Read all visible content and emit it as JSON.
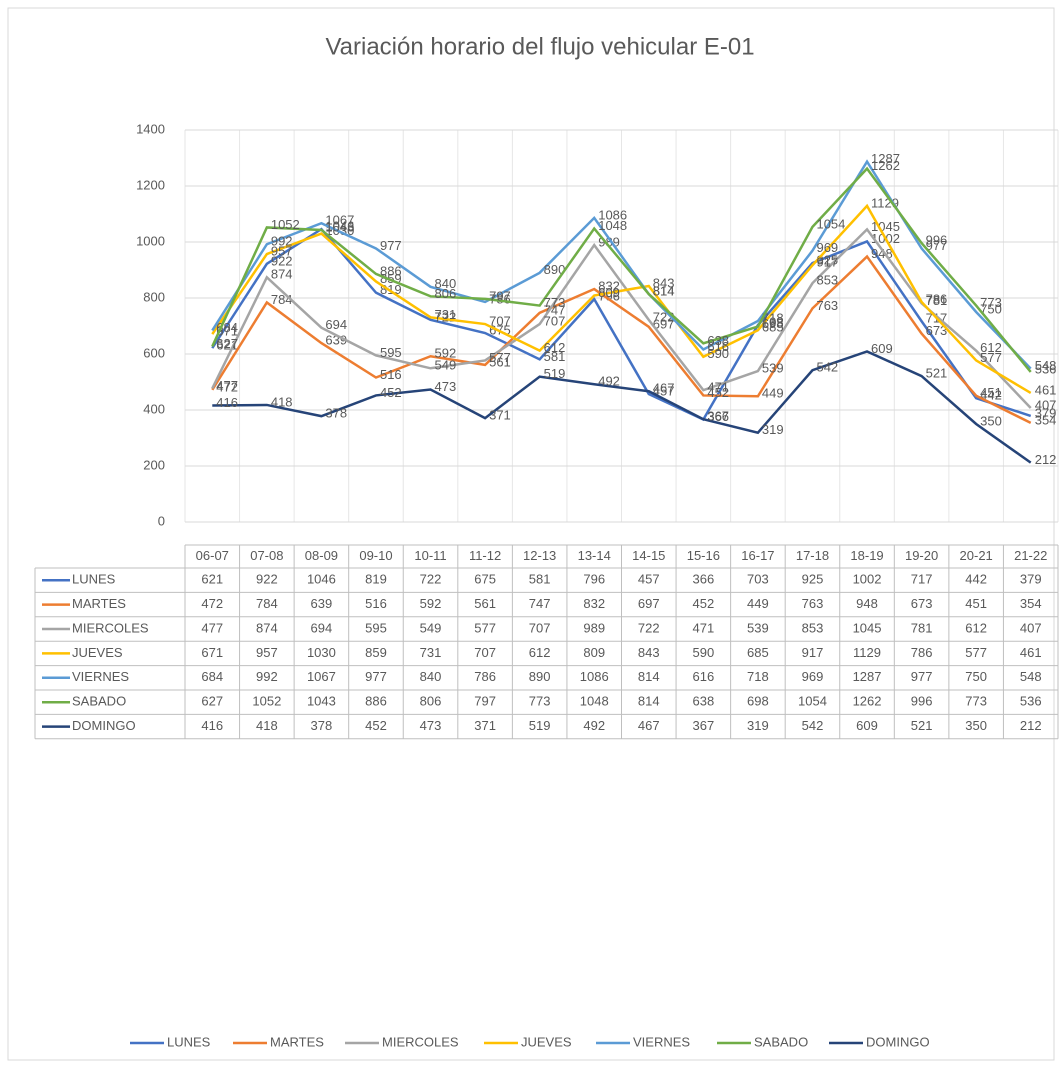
{
  "chart_data": {
    "type": "line",
    "title": "Variación horario del flujo vehicular E-01",
    "categories": [
      "06-07",
      "07-08",
      "08-09",
      "09-10",
      "10-11",
      "11-12",
      "12-13",
      "13-14",
      "14-15",
      "15-16",
      "16-17",
      "17-18",
      "18-19",
      "19-20",
      "20-21",
      "21-22"
    ],
    "series": [
      {
        "name": "LUNES",
        "color": "#4472c4",
        "values": [
          621,
          922,
          1046,
          819,
          722,
          675,
          581,
          796,
          457,
          366,
          703,
          925,
          1002,
          717,
          442,
          379
        ]
      },
      {
        "name": "MARTES",
        "color": "#ed7d31",
        "values": [
          472,
          784,
          639,
          516,
          592,
          561,
          747,
          832,
          697,
          452,
          449,
          763,
          948,
          673,
          451,
          354
        ]
      },
      {
        "name": "MIERCOLES",
        "color": "#a5a5a5",
        "values": [
          477,
          874,
          694,
          595,
          549,
          577,
          707,
          989,
          722,
          471,
          539,
          853,
          1045,
          781,
          612,
          407
        ]
      },
      {
        "name": "JUEVES",
        "color": "#ffc000",
        "values": [
          671,
          957,
          1030,
          859,
          731,
          707,
          612,
          809,
          843,
          590,
          685,
          917,
          1129,
          786,
          577,
          461
        ]
      },
      {
        "name": "VIERNES",
        "color": "#5b9bd5",
        "values": [
          684,
          992,
          1067,
          977,
          840,
          786,
          890,
          1086,
          814,
          616,
          718,
          969,
          1287,
          977,
          750,
          548
        ]
      },
      {
        "name": "SABADO",
        "color": "#70ad47",
        "values": [
          627,
          1052,
          1043,
          886,
          806,
          797,
          773,
          1048,
          814,
          638,
          698,
          1054,
          1262,
          996,
          773,
          536
        ]
      },
      {
        "name": "DOMINGO",
        "color": "#264478",
        "values": [
          416,
          418,
          378,
          452,
          473,
          371,
          519,
          492,
          467,
          367,
          319,
          542,
          609,
          521,
          350,
          212
        ]
      }
    ],
    "ylim": [
      0,
      1400
    ],
    "yticks": [
      0,
      200,
      400,
      600,
      800,
      1000,
      1200,
      1400
    ],
    "grid": true,
    "legend": "bottom"
  }
}
